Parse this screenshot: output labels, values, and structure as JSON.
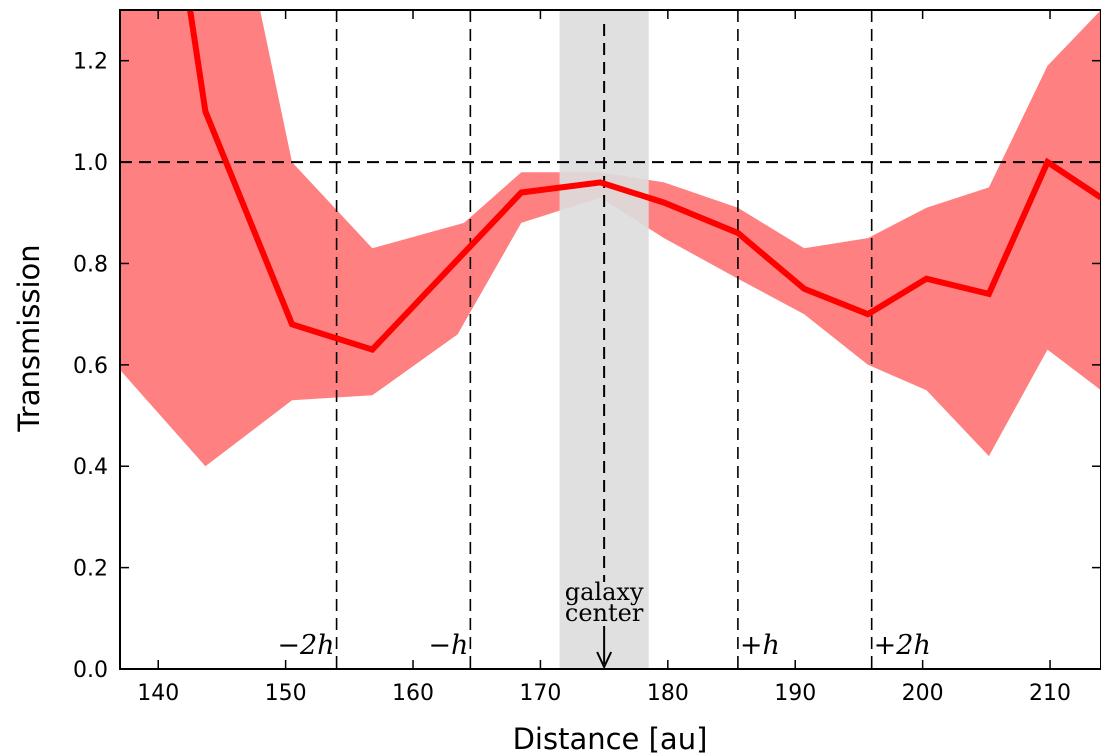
{
  "chart_data": {
    "type": "line",
    "xlabel": "Distance [au]",
    "ylabel": "Transmission",
    "xlim": [
      137,
      214
    ],
    "ylim": [
      0.0,
      1.3
    ],
    "x_ticks": [
      140,
      150,
      160,
      170,
      180,
      190,
      200,
      210
    ],
    "y_ticks": [
      0.0,
      0.2,
      0.4,
      0.6,
      0.8,
      1.0,
      1.2
    ],
    "x_tick_labels": [
      "140",
      "150",
      "160",
      "170",
      "180",
      "190",
      "200",
      "210"
    ],
    "y_tick_labels": [
      "0.0",
      "0.2",
      "0.4",
      "0.6",
      "0.8",
      "1.0",
      "1.2"
    ],
    "grid": false,
    "series": [
      {
        "x": [
          142.5,
          143.7,
          150.5,
          156.8,
          168.5,
          174.7,
          179.7,
          185.5,
          190.7,
          195.7,
          200.3,
          205.2,
          209.8,
          214.0
        ],
        "y": [
          1.3,
          1.1,
          0.68,
          0.63,
          0.94,
          0.96,
          0.92,
          0.86,
          0.75,
          0.7,
          0.77,
          0.74,
          1.0,
          0.93
        ],
        "color": "#ff0000"
      }
    ],
    "band": {
      "color": "#ff8080",
      "upper": {
        "x": [
          137,
          148.0,
          150.5,
          156.8,
          164.0,
          168.5,
          174.7,
          179.7,
          185.5,
          190.7,
          195.7,
          200.3,
          205.2,
          209.8,
          214.0
        ],
        "y": [
          1.3,
          1.3,
          1.0,
          0.83,
          0.88,
          0.98,
          0.98,
          0.96,
          0.91,
          0.83,
          0.85,
          0.91,
          0.95,
          1.19,
          1.3
        ]
      },
      "lower": {
        "x": [
          137,
          143.7,
          150.5,
          156.8,
          163.5,
          168.5,
          174.7,
          179.7,
          185.5,
          190.7,
          195.7,
          200.3,
          205.2,
          209.8,
          214.0
        ],
        "y": [
          0.59,
          0.4,
          0.53,
          0.54,
          0.66,
          0.88,
          0.93,
          0.85,
          0.77,
          0.7,
          0.6,
          0.55,
          0.42,
          0.63,
          0.55
        ]
      }
    },
    "shaded_region": {
      "x": [
        171.5,
        178.5
      ],
      "color": "#dddddd"
    },
    "reference_lines": {
      "horizontal": [
        1.0
      ],
      "vertical": [
        154.0,
        164.5,
        185.5,
        196.0
      ]
    },
    "annotations": [
      {
        "text": "−2h",
        "x": 154.0
      },
      {
        "text": "−h",
        "x": 164.5
      },
      {
        "text": "+h",
        "x": 185.5
      },
      {
        "text": "+2h",
        "x": 196.0
      }
    ],
    "galaxy_marker": {
      "x": 175.0,
      "line1": "galaxy",
      "line2": "center"
    }
  }
}
